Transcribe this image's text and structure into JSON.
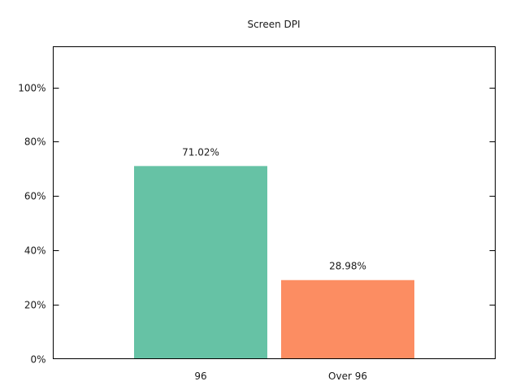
{
  "chart_data": {
    "type": "bar",
    "title": "Screen DPI",
    "xlabel": "",
    "ylabel": "",
    "categories": [
      "96",
      "Over 96"
    ],
    "values": [
      71.02,
      28.98
    ],
    "data_labels": [
      "71.02%",
      "28.98%"
    ],
    "colors": [
      "#66c2a5",
      "#fc8d62"
    ],
    "ylim": [
      0,
      115
    ],
    "yticks": [
      0,
      20,
      40,
      60,
      80,
      100
    ],
    "ytick_labels": [
      "0%",
      "20%",
      "40%",
      "60%",
      "80%",
      "100%"
    ],
    "grid": false,
    "legend": "none"
  }
}
